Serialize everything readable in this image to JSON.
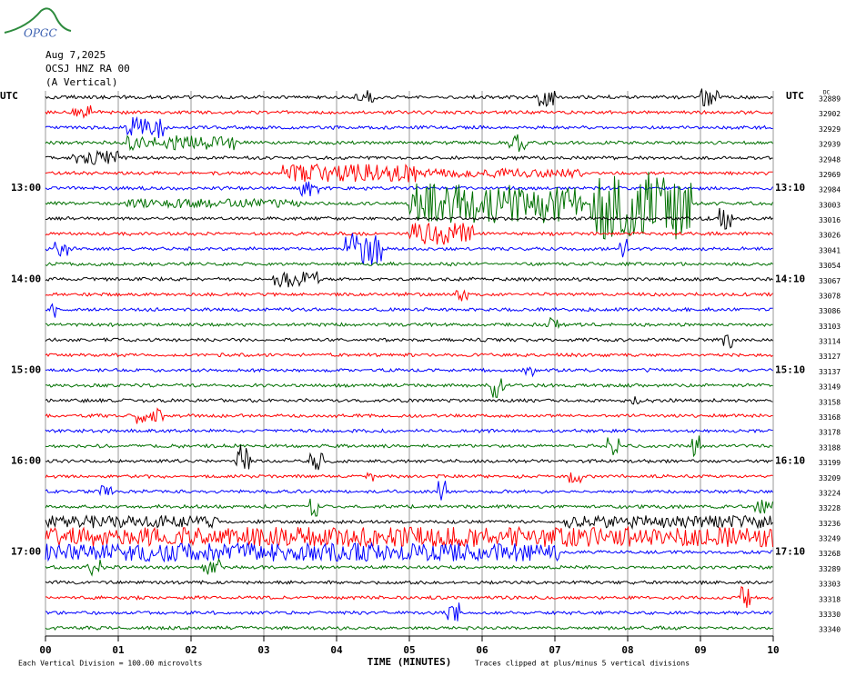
{
  "logo": "OPGC",
  "header": {
    "date": "Aug 7,2025",
    "station": "OCSJ HNZ RA 00",
    "component": "(A Vertical)"
  },
  "utc_left": "UTC",
  "utc_right": "UTC",
  "dc_label": "DC",
  "left_times": [
    "13:00",
    "14:00",
    "15:00",
    "16:00",
    "17:00"
  ],
  "right_times": [
    "13:10",
    "14:10",
    "15:10",
    "16:10",
    "17:10"
  ],
  "trace_levels": [
    "32889",
    "32902",
    "32929",
    "32939",
    "32948",
    "32969",
    "32984",
    "33003",
    "33016",
    "33026",
    "33041",
    "33054",
    "33067",
    "33078",
    "33086",
    "33103",
    "33114",
    "33127",
    "33137",
    "33149",
    "33158",
    "33168",
    "33178",
    "33188",
    "33199",
    "33209",
    "33224",
    "33228",
    "33236",
    "33249",
    "33268",
    "33289",
    "33303",
    "33318",
    "33330",
    "33340"
  ],
  "trace_colors": [
    "#000000",
    "#ff0000",
    "#0000ff",
    "#007000"
  ],
  "x_axis": {
    "title": "TIME (MINUTES)",
    "ticks": [
      {
        "value": 0,
        "label": "00"
      },
      {
        "value": 1,
        "label": "01"
      },
      {
        "value": 2,
        "label": "02"
      },
      {
        "value": 3,
        "label": "03"
      },
      {
        "value": 4,
        "label": "04"
      },
      {
        "value": 5,
        "label": "05"
      },
      {
        "value": 6,
        "label": "06"
      },
      {
        "value": 7,
        "label": "07"
      },
      {
        "value": 8,
        "label": "08"
      },
      {
        "value": 9,
        "label": "09"
      },
      {
        "value": 10,
        "label": "10"
      }
    ]
  },
  "footer": {
    "scale": "Each Vertical Division =  100.00 microvolts",
    "clip": "Traces clipped at plus/minus 5 vertical divisions"
  }
}
